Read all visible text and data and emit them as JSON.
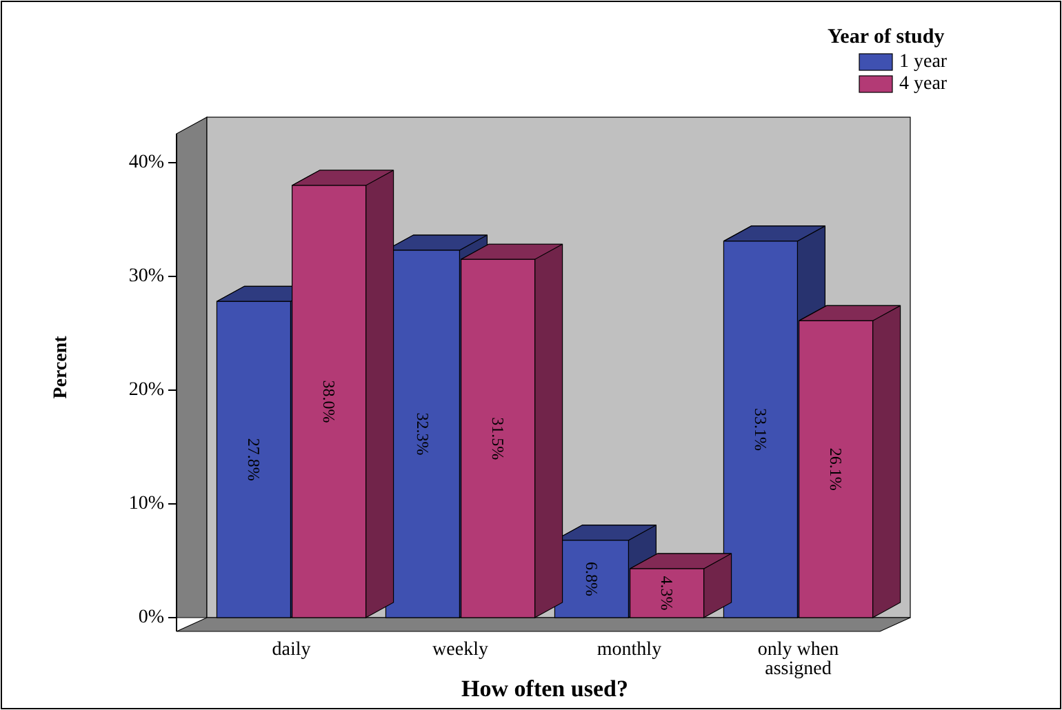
{
  "chart_data": {
    "type": "bar",
    "xlabel": "How often used?",
    "ylabel": "Percent",
    "legend_title": "Year of study",
    "legend": "top right",
    "grid": false,
    "categories": [
      "daily",
      "weekly",
      "monthly",
      "only when assigned"
    ],
    "series": [
      {
        "name": "1 year",
        "color": "#3f51b1",
        "values": [
          27.8,
          32.3,
          6.8,
          33.1
        ],
        "value_labels": [
          "27.8%",
          "32.3%",
          "6.8%",
          "33.1%"
        ]
      },
      {
        "name": "4 year",
        "color": "#b33a75",
        "values": [
          38.0,
          31.5,
          4.3,
          26.1
        ],
        "value_labels": [
          "38.0%",
          "31.5%",
          "4.3%",
          "26.1%"
        ]
      }
    ],
    "ylim": [
      0,
      44
    ],
    "yticks": [
      {
        "value": 0,
        "label": "0%"
      },
      {
        "value": 10,
        "label": "10%"
      },
      {
        "value": 20,
        "label": "20%"
      },
      {
        "value": 30,
        "label": "30%"
      },
      {
        "value": 40,
        "label": "40%"
      }
    ]
  }
}
